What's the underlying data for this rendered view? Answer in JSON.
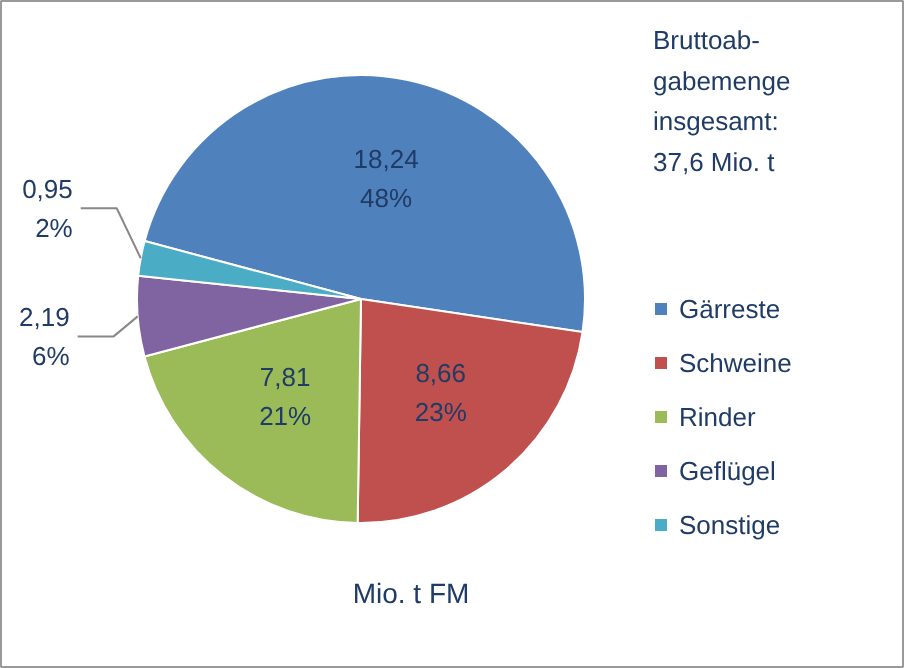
{
  "chart_data": {
    "type": "pie",
    "categories": [
      "Gärreste",
      "Schweine",
      "Rinder",
      "Geflügel",
      "Sonstige"
    ],
    "values": [
      18.24,
      8.66,
      7.81,
      2.19,
      0.95
    ],
    "colors": [
      "#4f81bd",
      "#c0504d",
      "#9bbb59",
      "#8064a2",
      "#4bacc6"
    ],
    "value_labels": [
      "18,24\n48%",
      "8,66\n23%",
      "7,81\n21%",
      "2,19\n6%",
      "0,95\n2%"
    ],
    "annotations": [
      "Bruttoab-\ngabemenge\ninsgesamt:\n37,6 Mio. t",
      "Mio. t FM"
    ],
    "legend": "right"
  }
}
